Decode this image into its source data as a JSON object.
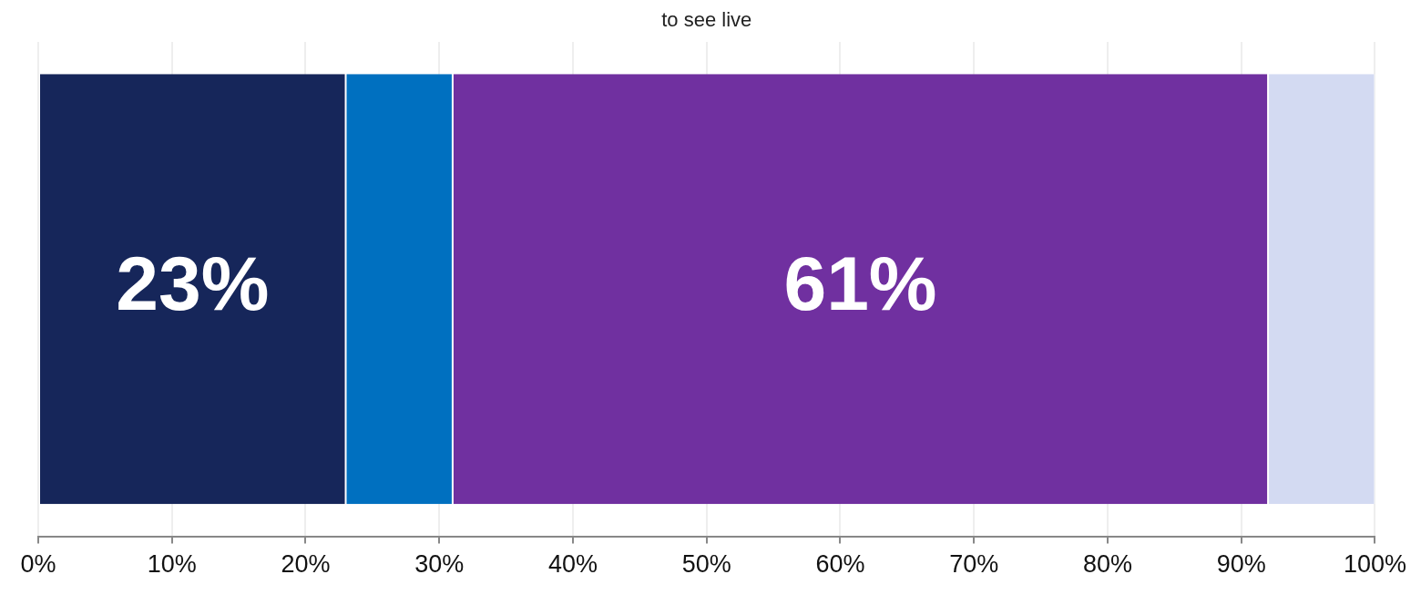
{
  "chart_data": {
    "type": "bar",
    "orientation": "horizontal",
    "stacked": true,
    "categories": [
      null
    ],
    "series": [
      {
        "color": "#16265a",
        "values": [
          23
        ],
        "value_labels": [
          "23%"
        ]
      },
      {
        "color": "#0070c0",
        "values": [
          8
        ],
        "value_labels": [
          null
        ]
      },
      {
        "color": "#7030a0",
        "values": [
          61
        ],
        "value_labels": [
          "61%"
        ]
      },
      {
        "color": "#d3daf2",
        "values": [
          8
        ],
        "value_labels": [
          null
        ]
      }
    ],
    "xlim": [
      0,
      100
    ],
    "xticks": [
      {
        "value": 0,
        "label": "0%"
      },
      {
        "value": 10,
        "label": "10%"
      },
      {
        "value": 20,
        "label": "20%"
      },
      {
        "value": 30,
        "label": "30%"
      },
      {
        "value": 40,
        "label": "40%"
      },
      {
        "value": 50,
        "label": "50%"
      },
      {
        "value": 60,
        "label": "60%"
      },
      {
        "value": 70,
        "label": "70%"
      },
      {
        "value": 80,
        "label": "80%"
      },
      {
        "value": 90,
        "label": "90%"
      },
      {
        "value": 100,
        "label": "100%"
      }
    ],
    "grid": "x",
    "legend": false,
    "annotations": [
      "to see live"
    ]
  }
}
